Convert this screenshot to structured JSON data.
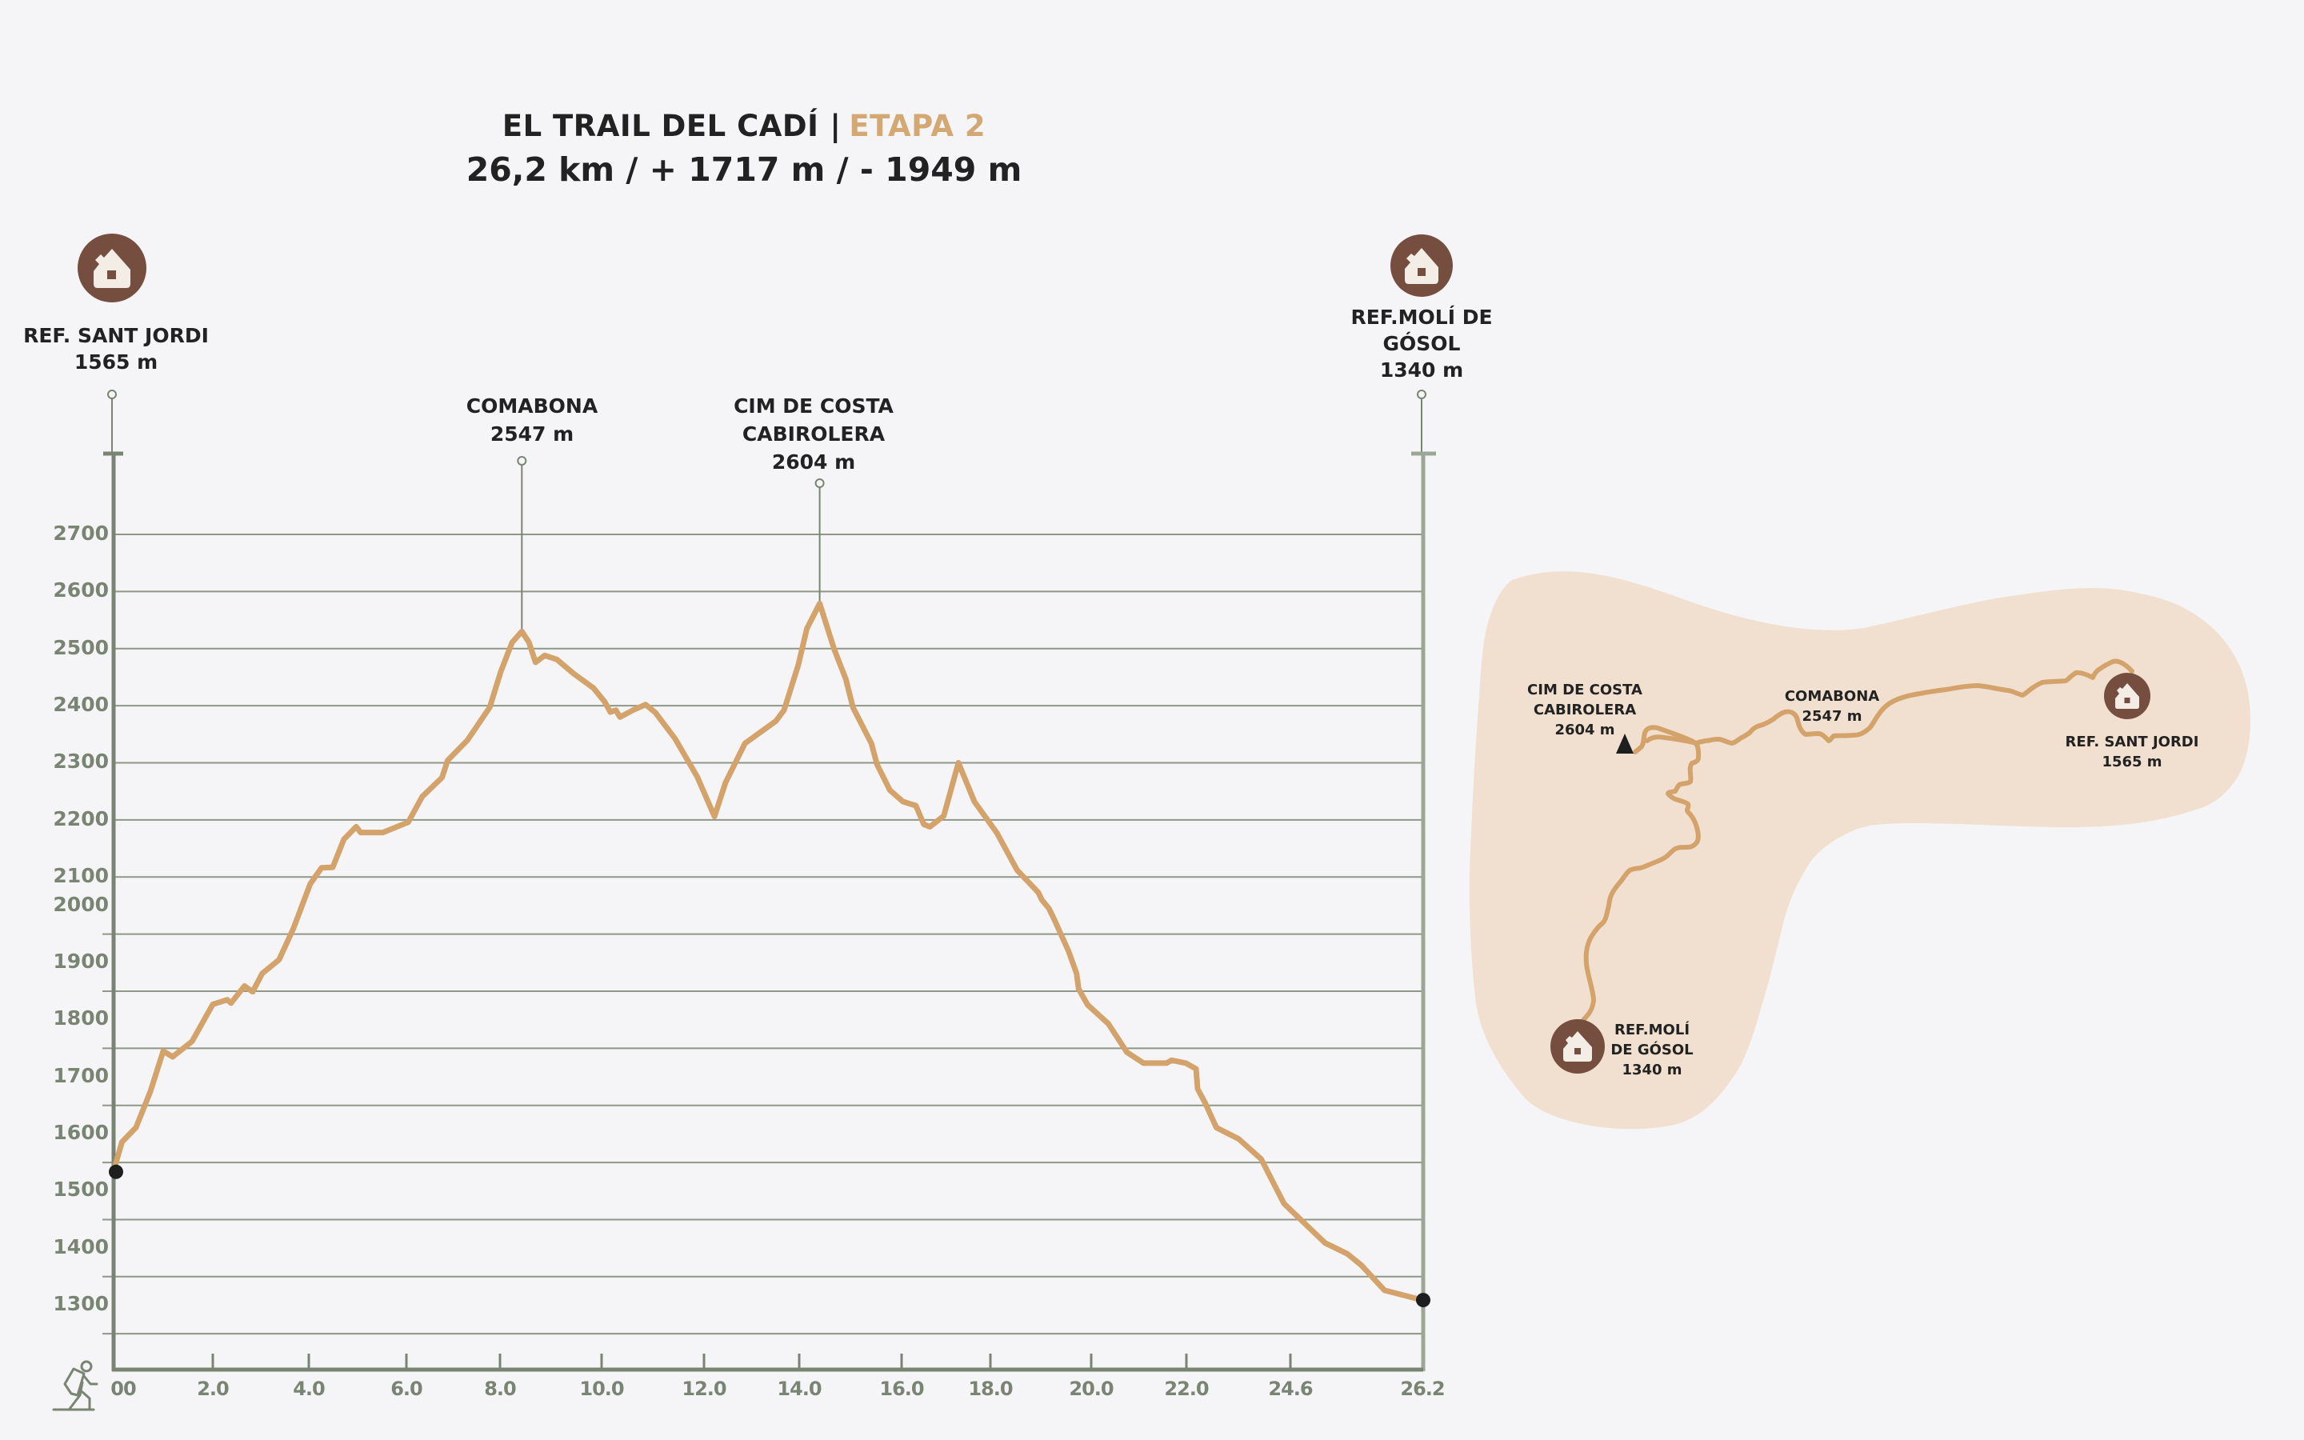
{
  "header": {
    "title": "EL TRAIL DEL CADÍ",
    "separator": "|",
    "stage": "ETAPA 2",
    "stats": "26,2 km / + 1717 m / - 1949 m"
  },
  "colors": {
    "background": "#F5F5F8",
    "profile_line": "#D4A36C",
    "axis": "#7A8473",
    "grid": "#8E9886",
    "refuge_icon": "#754E3F",
    "map_area": "#F1E0CF",
    "text": "#222222",
    "accent": "#D4A873"
  },
  "waypoints": {
    "start": {
      "name": "REF. SANT JORDI",
      "elevation": "1565 m",
      "icon": "house-icon"
    },
    "end": {
      "name_line1": "REF.MOLÍ DE",
      "name_line2": "GÓSOL",
      "elevation": "1340 m",
      "icon": "house-icon"
    },
    "peak1": {
      "name": "COMABONA",
      "elevation": "2547 m"
    },
    "peak2": {
      "name_line1": "CIM DE COSTA",
      "name_line2": "CABIROLERA",
      "elevation": "2604 m"
    }
  },
  "map": {
    "start": {
      "name": "REF. SANT JORDI",
      "elevation": "1565 m",
      "icon": "house-icon"
    },
    "end": {
      "name_line1": "REF.MOLÍ",
      "name_line2": "DE GÓSOL",
      "elevation": "1340 m",
      "icon": "house-icon"
    },
    "peak1": {
      "name": "COMABONA",
      "elevation": "2547 m"
    },
    "peak2": {
      "name_line1": "CIM DE COSTA",
      "name_line2": "CABIROLERA",
      "elevation": "2604 m",
      "icon": "summit-triangle-icon"
    }
  },
  "legend_icon": "hiker-icon",
  "chart_data": {
    "type": "area",
    "title": "EL TRAIL DEL CADÍ | ETAPA 2",
    "subtitle": "26,2 km / + 1717 m / - 1949 m",
    "xlabel": "",
    "ylabel": "",
    "xlim": [
      0,
      26.2
    ],
    "ylim": [
      1270,
      2760
    ],
    "grid": true,
    "x_ticks": [
      0,
      2,
      4,
      6,
      8,
      10,
      12,
      14,
      16,
      18,
      20,
      22,
      24.6,
      26.2
    ],
    "x_tick_labels": [
      "00",
      "2.0",
      "4.0",
      "6.0",
      "8.0",
      "10.0",
      "12.0",
      "14.0",
      "16.0",
      "18.0",
      "20.0",
      "22.0",
      "24.6",
      "26.2"
    ],
    "y_ticks": [
      2700,
      2600,
      2500,
      2400,
      2300,
      2200,
      2100,
      2000,
      1900,
      1800,
      1700,
      1600,
      1500,
      1400,
      1300
    ],
    "y_tick_labels": [
      "2700",
      "2600",
      "2500",
      "2400",
      "2300",
      "2200",
      "2100",
      "2000",
      "1900",
      "1800",
      "1700",
      "1600",
      "1500",
      "1400",
      "1300"
    ],
    "series": [
      {
        "name": "elevation_profile",
        "unit_x": "km",
        "unit_y": "m",
        "points": [
          [
            0.0,
            1585
          ],
          [
            0.17,
            1636
          ],
          [
            0.45,
            1661
          ],
          [
            0.74,
            1724
          ],
          [
            1.0,
            1795
          ],
          [
            1.19,
            1785
          ],
          [
            1.58,
            1812
          ],
          [
            2.0,
            1877
          ],
          [
            2.3,
            1885
          ],
          [
            2.38,
            1879
          ],
          [
            2.66,
            1909
          ],
          [
            2.83,
            1899
          ],
          [
            3.03,
            1931
          ],
          [
            3.38,
            1955
          ],
          [
            3.68,
            2010
          ],
          [
            4.03,
            2088
          ],
          [
            4.26,
            2116
          ],
          [
            4.49,
            2117
          ],
          [
            4.72,
            2166
          ],
          [
            4.97,
            2188
          ],
          [
            5.06,
            2178
          ],
          [
            5.52,
            2178
          ],
          [
            6.04,
            2196
          ],
          [
            6.34,
            2241
          ],
          [
            6.76,
            2274
          ],
          [
            6.88,
            2304
          ],
          [
            7.3,
            2339
          ],
          [
            7.78,
            2397
          ],
          [
            8.02,
            2461
          ],
          [
            8.24,
            2511
          ],
          [
            8.43,
            2530
          ],
          [
            8.57,
            2511
          ],
          [
            8.7,
            2476
          ],
          [
            8.88,
            2488
          ],
          [
            9.12,
            2481
          ],
          [
            9.45,
            2456
          ],
          [
            9.84,
            2431
          ],
          [
            10.06,
            2407
          ],
          [
            10.17,
            2389
          ],
          [
            10.28,
            2392
          ],
          [
            10.36,
            2380
          ],
          [
            10.61,
            2392
          ],
          [
            10.86,
            2402
          ],
          [
            11.05,
            2388
          ],
          [
            11.43,
            2343
          ],
          [
            11.87,
            2275
          ],
          [
            12.22,
            2206
          ],
          [
            12.45,
            2265
          ],
          [
            12.86,
            2334
          ],
          [
            13.51,
            2373
          ],
          [
            13.68,
            2392
          ],
          [
            13.98,
            2471
          ],
          [
            14.15,
            2535
          ],
          [
            14.4,
            2579
          ],
          [
            14.69,
            2497
          ],
          [
            14.91,
            2447
          ],
          [
            15.05,
            2397
          ],
          [
            15.41,
            2334
          ],
          [
            15.52,
            2297
          ],
          [
            15.77,
            2252
          ],
          [
            16.03,
            2232
          ],
          [
            16.32,
            2225
          ],
          [
            16.5,
            2192
          ],
          [
            16.64,
            2188
          ],
          [
            16.95,
            2207
          ],
          [
            17.28,
            2300
          ],
          [
            17.64,
            2232
          ],
          [
            18.13,
            2177
          ],
          [
            18.53,
            2112
          ],
          [
            18.95,
            2073
          ],
          [
            19.02,
            2060
          ],
          [
            19.16,
            2045
          ],
          [
            19.27,
            2025
          ],
          [
            19.55,
            1970
          ],
          [
            19.71,
            1931
          ],
          [
            19.75,
            1904
          ],
          [
            19.93,
            1876
          ],
          [
            20.36,
            1843
          ],
          [
            20.75,
            1793
          ],
          [
            21.1,
            1774
          ],
          [
            21.58,
            1774
          ],
          [
            21.69,
            1779
          ],
          [
            21.99,
            1774
          ],
          [
            22.24,
            1764
          ],
          [
            22.28,
            1729
          ],
          [
            22.47,
            1704
          ],
          [
            22.75,
            1661
          ],
          [
            23.31,
            1641
          ],
          [
            23.87,
            1606
          ],
          [
            24.44,
            1528
          ],
          [
            25.02,
            1459
          ],
          [
            25.29,
            1440
          ],
          [
            25.46,
            1420
          ],
          [
            25.74,
            1376
          ],
          [
            26.2,
            1359
          ]
        ]
      }
    ],
    "markers": [
      {
        "label": "REF. SANT JORDI",
        "km": 0,
        "elevation": 1565,
        "type": "refuge"
      },
      {
        "label": "COMABONA",
        "km": 8.43,
        "elevation": 2547,
        "type": "peak"
      },
      {
        "label": "CIM DE COSTA CABIROLERA",
        "km": 14.4,
        "elevation": 2604,
        "type": "peak"
      },
      {
        "label": "REF.MOLÍ DE GÓSOL",
        "km": 26.2,
        "elevation": 1340,
        "type": "refuge"
      }
    ]
  }
}
